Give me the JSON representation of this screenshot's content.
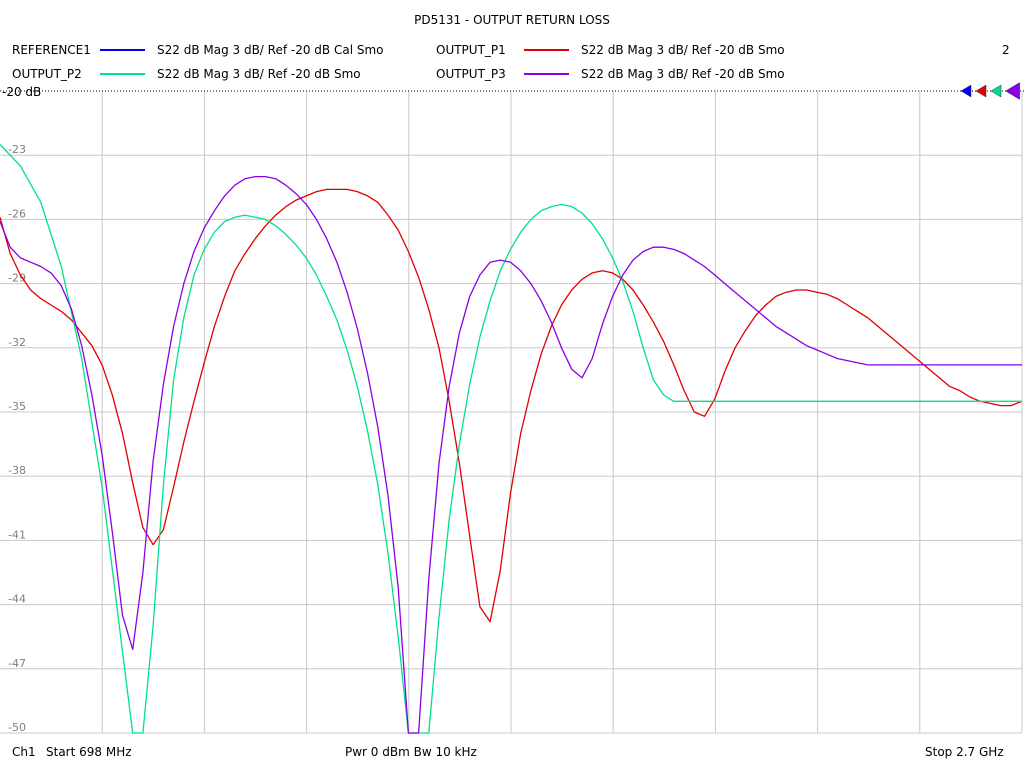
{
  "header": {
    "title": "PD5131 - OUTPUT RETURN LOSS",
    "page_number": "2"
  },
  "legend": [
    {
      "name": "REFERENCE1",
      "desc": "S22  dB Mag  3 dB/ Ref -20 dB  Cal Smo",
      "color": "#0000ff"
    },
    {
      "name": "OUTPUT_P1",
      "desc": "S22  dB Mag  3 dB/ Ref -20 dB  Smo",
      "color": "#e00000"
    },
    {
      "name": "OUTPUT_P2",
      "desc": "S22  dB Mag  3 dB/ Ref -20 dB  Smo",
      "color": "#00e08a"
    },
    {
      "name": "OUTPUT_P3",
      "desc": "S22  dB Mag  3 dB/ Ref -20 dB  Smo",
      "color": "#8a00e6"
    }
  ],
  "footer": {
    "left_ch": "Ch1",
    "left_start": "Start  698 MHz",
    "center": "Pwr  0 dBm  Bw  10 kHz",
    "right": "Stop  2.7 GHz"
  },
  "chart_data": {
    "type": "line",
    "title": "PD5131 - OUTPUT RETURN LOSS",
    "x_unit": "MHz",
    "xlim": [
      698,
      2700
    ],
    "y_unit": "dB",
    "ylim": [
      -50,
      -20
    ],
    "reference_label": "-20 dB",
    "y_ticks": [
      "-23",
      "-26",
      "-29",
      "-32",
      "-35",
      "-38",
      "-41",
      "-44",
      "-47",
      "-50"
    ],
    "grid": true,
    "legend_position": "top",
    "marker_colors": [
      "#0000ff",
      "#e00000",
      "#00e08a",
      "#8a00e6"
    ],
    "series": [
      {
        "name": "OUTPUT_P1",
        "color": "#e00000",
        "x": [
          698,
          718,
          738,
          758,
          778,
          798,
          818,
          838,
          858,
          878,
          898,
          918,
          938,
          958,
          978,
          998,
          1018,
          1038,
          1058,
          1078,
          1098,
          1118,
          1138,
          1158,
          1178,
          1198,
          1218,
          1238,
          1258,
          1278,
          1298,
          1318,
          1338,
          1358,
          1378,
          1398,
          1418,
          1438,
          1458,
          1478,
          1498,
          1518,
          1538,
          1558,
          1578,
          1598,
          1618,
          1638,
          1658,
          1678,
          1698,
          1718,
          1738,
          1758,
          1778,
          1798,
          1818,
          1838,
          1858,
          1878,
          1898,
          1918,
          1938,
          1958,
          1978,
          1998,
          2018,
          2038,
          2058,
          2078,
          2098,
          2118,
          2138,
          2158,
          2178,
          2198,
          2218,
          2238,
          2258,
          2278,
          2298,
          2318,
          2338,
          2358,
          2378,
          2398,
          2418,
          2438,
          2458,
          2478,
          2498,
          2518,
          2538,
          2558,
          2578,
          2598,
          2618,
          2638,
          2658,
          2678,
          2700
        ],
        "y": [
          -25.9,
          -27.6,
          -28.6,
          -29.3,
          -29.7,
          -30.0,
          -30.3,
          -30.7,
          -31.3,
          -31.9,
          -32.8,
          -34.2,
          -36.0,
          -38.3,
          -40.4,
          -41.2,
          -40.5,
          -38.5,
          -36.4,
          -34.5,
          -32.7,
          -31.0,
          -29.6,
          -28.4,
          -27.6,
          -26.9,
          -26.3,
          -25.8,
          -25.4,
          -25.1,
          -24.9,
          -24.7,
          -24.6,
          -24.6,
          -24.6,
          -24.7,
          -24.9,
          -25.2,
          -25.8,
          -26.5,
          -27.5,
          -28.7,
          -30.2,
          -32.0,
          -34.5,
          -37.4,
          -40.8,
          -44.1,
          -44.8,
          -42.4,
          -38.8,
          -36.0,
          -34.0,
          -32.3,
          -31.0,
          -30.0,
          -29.3,
          -28.8,
          -28.5,
          -28.4,
          -28.5,
          -28.8,
          -29.3,
          -30.0,
          -30.8,
          -31.7,
          -32.8,
          -34.0,
          -35.0,
          -35.2,
          -34.4,
          -33.1,
          -32.0,
          -31.2,
          -30.5,
          -30.0,
          -29.6,
          -29.4,
          -29.3,
          -29.3,
          -29.4,
          -29.5,
          -29.7,
          -30.0,
          -30.3,
          -30.6,
          -31.0,
          -31.4,
          -31.8,
          -32.2,
          -32.6,
          -33.0,
          -33.4,
          -33.8,
          -34.0,
          -34.3,
          -34.5,
          -34.6,
          -34.7,
          -34.7,
          -34.5
        ],
        "note_y_values_after_2700": ""
      },
      {
        "name": "OUTPUT_P2",
        "color": "#00e08a",
        "x": [
          698,
          738,
          778,
          818,
          858,
          898,
          938,
          958,
          978,
          998,
          1018,
          1038,
          1058,
          1078,
          1098,
          1118,
          1138,
          1158,
          1178,
          1198,
          1218,
          1238,
          1258,
          1278,
          1298,
          1318,
          1338,
          1358,
          1378,
          1398,
          1418,
          1438,
          1458,
          1478,
          1498,
          1518,
          1538,
          1558,
          1578,
          1598,
          1618,
          1638,
          1658,
          1678,
          1698,
          1718,
          1738,
          1758,
          1778,
          1798,
          1818,
          1838,
          1858,
          1878,
          1898,
          1918,
          1938,
          1958,
          1978,
          1998,
          2018,
          2038,
          2058,
          2078,
          2098,
          2118,
          2138,
          2158,
          2178,
          2198,
          2218,
          2238,
          2258,
          2278,
          2298,
          2318,
          2338,
          2358,
          2378,
          2398,
          2418,
          2438,
          2458,
          2478,
          2498,
          2518,
          2538,
          2558,
          2578,
          2598,
          2618,
          2638,
          2658,
          2678,
          2700
        ],
        "y": [
          -22.5,
          -23.5,
          -25.2,
          -28.2,
          -32.5,
          -38.5,
          -46.2,
          -50.0,
          -50.0,
          -45.0,
          -38.4,
          -33.5,
          -30.6,
          -28.6,
          -27.4,
          -26.6,
          -26.1,
          -25.9,
          -25.8,
          -25.9,
          -26.0,
          -26.3,
          -26.7,
          -27.2,
          -27.8,
          -28.6,
          -29.6,
          -30.7,
          -32.1,
          -33.8,
          -35.9,
          -38.4,
          -41.6,
          -45.5,
          -50.0,
          -50.0,
          -50.0,
          -44.6,
          -40.0,
          -36.5,
          -33.7,
          -31.5,
          -29.8,
          -28.4,
          -27.4,
          -26.6,
          -26.0,
          -25.6,
          -25.4,
          -25.3,
          -25.4,
          -25.7,
          -26.2,
          -26.9,
          -27.8,
          -28.9,
          -30.3,
          -32.0,
          -33.5,
          -34.2,
          -34.5,
          -34.5,
          -34.5,
          -34.5,
          -34.5,
          -34.5,
          -34.5,
          -34.5,
          -34.5,
          -34.5,
          -34.5,
          -34.5,
          -34.5,
          -34.5,
          -34.5,
          -34.5,
          -34.5,
          -34.5,
          -34.5,
          -34.5,
          -34.5,
          -34.5,
          -34.5,
          -34.5,
          -34.5,
          -34.5,
          -34.5,
          -34.5,
          -34.5,
          -34.5,
          -34.5,
          -34.5,
          -34.5,
          -34.5,
          -34.5
        ]
      },
      {
        "name": "OUTPUT_P3",
        "color": "#8a00e6",
        "x": [
          698,
          718,
          738,
          758,
          778,
          798,
          818,
          838,
          858,
          878,
          898,
          918,
          938,
          958,
          978,
          998,
          1018,
          1038,
          1058,
          1078,
          1098,
          1118,
          1138,
          1158,
          1178,
          1198,
          1218,
          1238,
          1258,
          1278,
          1298,
          1318,
          1338,
          1358,
          1378,
          1398,
          1418,
          1438,
          1458,
          1478,
          1498,
          1518,
          1538,
          1558,
          1578,
          1598,
          1618,
          1638,
          1658,
          1678,
          1698,
          1718,
          1738,
          1758,
          1778,
          1798,
          1818,
          1838,
          1858,
          1878,
          1898,
          1918,
          1938,
          1958,
          1978,
          1998,
          2018,
          2038,
          2058,
          2078,
          2098,
          2118,
          2138,
          2158,
          2178,
          2198,
          2218,
          2238,
          2258,
          2278,
          2298,
          2318,
          2338,
          2358,
          2378,
          2398,
          2418,
          2438,
          2458,
          2478,
          2498,
          2518,
          2538,
          2558,
          2578,
          2598,
          2618,
          2638,
          2658,
          2678,
          2700
        ],
        "y": [
          -26.1,
          -27.3,
          -27.8,
          -28.0,
          -28.2,
          -28.5,
          -29.1,
          -30.2,
          -31.9,
          -34.2,
          -37.0,
          -40.6,
          -44.5,
          -46.1,
          -42.5,
          -37.3,
          -33.7,
          -31.0,
          -29.0,
          -27.5,
          -26.4,
          -25.6,
          -24.9,
          -24.4,
          -24.1,
          -24.0,
          -24.0,
          -24.1,
          -24.4,
          -24.8,
          -25.3,
          -26.0,
          -26.9,
          -28.0,
          -29.4,
          -31.1,
          -33.2,
          -35.7,
          -38.9,
          -43.2,
          -50.0,
          -50.0,
          -42.8,
          -37.4,
          -33.8,
          -31.3,
          -29.6,
          -28.6,
          -28.0,
          -27.9,
          -28.0,
          -28.4,
          -29.0,
          -29.8,
          -30.8,
          -32.0,
          -33.0,
          -33.4,
          -32.5,
          -30.9,
          -29.6,
          -28.6,
          -27.9,
          -27.5,
          -27.3,
          -27.3,
          -27.4,
          -27.6,
          -27.9,
          -28.2,
          -28.6,
          -29.0,
          -29.4,
          -29.8,
          -30.2,
          -30.6,
          -31.0,
          -31.3,
          -31.6,
          -31.9,
          -32.1,
          -32.3,
          -32.5,
          -32.6,
          -32.7,
          -32.8,
          -32.8,
          -32.8,
          -32.8,
          -32.8,
          -32.8,
          -32.8,
          -32.8,
          -32.8,
          -32.8,
          -32.8,
          -32.8,
          -32.8,
          -32.8,
          -32.8,
          -32.8
        ]
      }
    ]
  }
}
